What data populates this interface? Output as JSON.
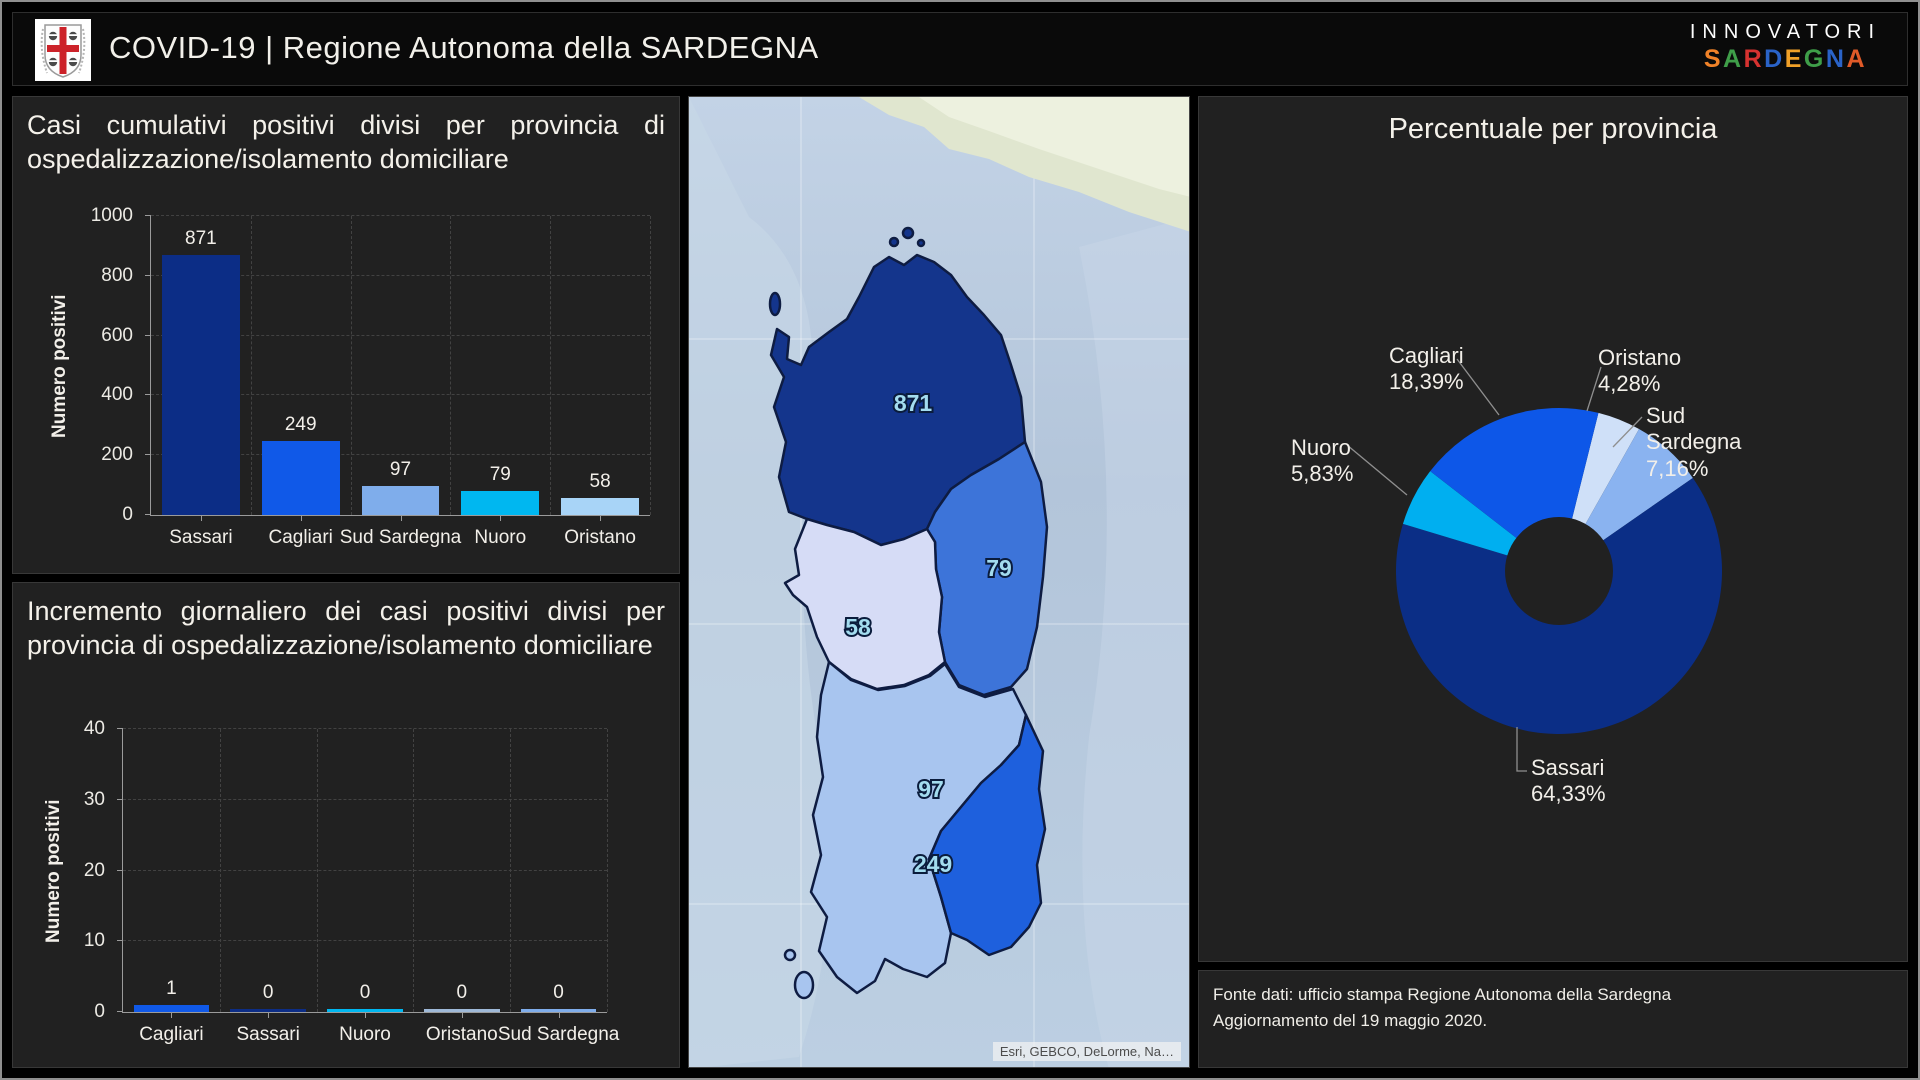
{
  "header": {
    "title": "COVID-19 | Regione Autonoma della SARDEGNA",
    "logo": "sardinia-coat-of-arms",
    "brand": {
      "line1": "INNOVATORI",
      "line2_letters": [
        {
          "ch": "S",
          "color": "#f08228"
        },
        {
          "ch": "A",
          "color": "#3f9e49"
        },
        {
          "ch": "R",
          "color": "#d63230"
        },
        {
          "ch": "D",
          "color": "#2a63c8"
        },
        {
          "ch": "E",
          "color": "#f0a028"
        },
        {
          "ch": "G",
          "color": "#3f9e49"
        },
        {
          "ch": "N",
          "color": "#2a63c8"
        },
        {
          "ch": "A",
          "color": "#e05a28"
        }
      ]
    }
  },
  "chart_data": [
    {
      "id": "cumulative",
      "type": "bar",
      "title": "Casi cumulativi positivi divisi per provincia di ospedalizzazione/isolamento domiciliare",
      "ylabel": "Numero positivi",
      "ylim": [
        0,
        1000
      ],
      "yticks": [
        0,
        200,
        400,
        600,
        800,
        1000
      ],
      "grid": "dashed",
      "categories": [
        "Sassari",
        "Cagliari",
        "Sud Sardegna",
        "Nuoro",
        "Oristano"
      ],
      "values": [
        871,
        249,
        97,
        79,
        58
      ],
      "colors": [
        "#0c2d86",
        "#1059e8",
        "#7fadeb",
        "#00b7f0",
        "#a8d4f7"
      ]
    },
    {
      "id": "daily",
      "type": "bar",
      "title": "Incremento giornaliero dei casi positivi divisi per provincia di ospedalizzazione/isolamento domiciliare",
      "ylabel": "Numero positivi",
      "ylim": [
        0,
        40
      ],
      "yticks": [
        0,
        10,
        20,
        30,
        40
      ],
      "grid": "dashed",
      "categories": [
        "Cagliari",
        "Sassari",
        "Nuoro",
        "Oristano",
        "Sud Sardegna"
      ],
      "values": [
        1,
        0,
        0,
        0,
        0
      ],
      "colors": [
        "#1059e8",
        "#0c2d86",
        "#00b7f0",
        "#9fb9d8",
        "#7fadeb"
      ]
    },
    {
      "id": "percentage",
      "type": "pie",
      "title": "Percentuale per provincia",
      "start_angle": 14,
      "legend_position": "callout-labels",
      "slices": [
        {
          "name": "Oristano",
          "value": 4.28,
          "pct_label": "4,28%",
          "color": "#cfe0f8"
        },
        {
          "name": "Sud Sardegna",
          "value": 7.16,
          "pct_label": "7,16%",
          "color": "#8ab3f0"
        },
        {
          "name": "Sassari",
          "value": 64.33,
          "pct_label": "64,33%",
          "color": "#0b2e86"
        },
        {
          "name": "Nuoro",
          "value": 5.83,
          "pct_label": "5,83%",
          "color": "#00aff0"
        },
        {
          "name": "Cagliari",
          "value": 18.39,
          "pct_label": "18,39%",
          "color": "#0d57e8"
        }
      ]
    }
  ],
  "map": {
    "provinces": [
      {
        "name": "Sassari",
        "value": 871,
        "color": "#14358c"
      },
      {
        "name": "Nuoro",
        "value": 79,
        "color": "#3d74d9"
      },
      {
        "name": "Oristano",
        "value": 58,
        "color": "#d6dcf6"
      },
      {
        "name": "Sud Sardegna",
        "value": 97,
        "color": "#a8c5ef"
      },
      {
        "name": "Cagliari",
        "value": 249,
        "color": "#1e60dd"
      }
    ],
    "attribution": "Esri, GEBCO, DeLorme, Na…"
  },
  "footer": {
    "line1": "Fonte dati: ufficio stampa Regione Autonoma della Sardegna",
    "line2": "Aggiornamento del 19 maggio 2020."
  }
}
